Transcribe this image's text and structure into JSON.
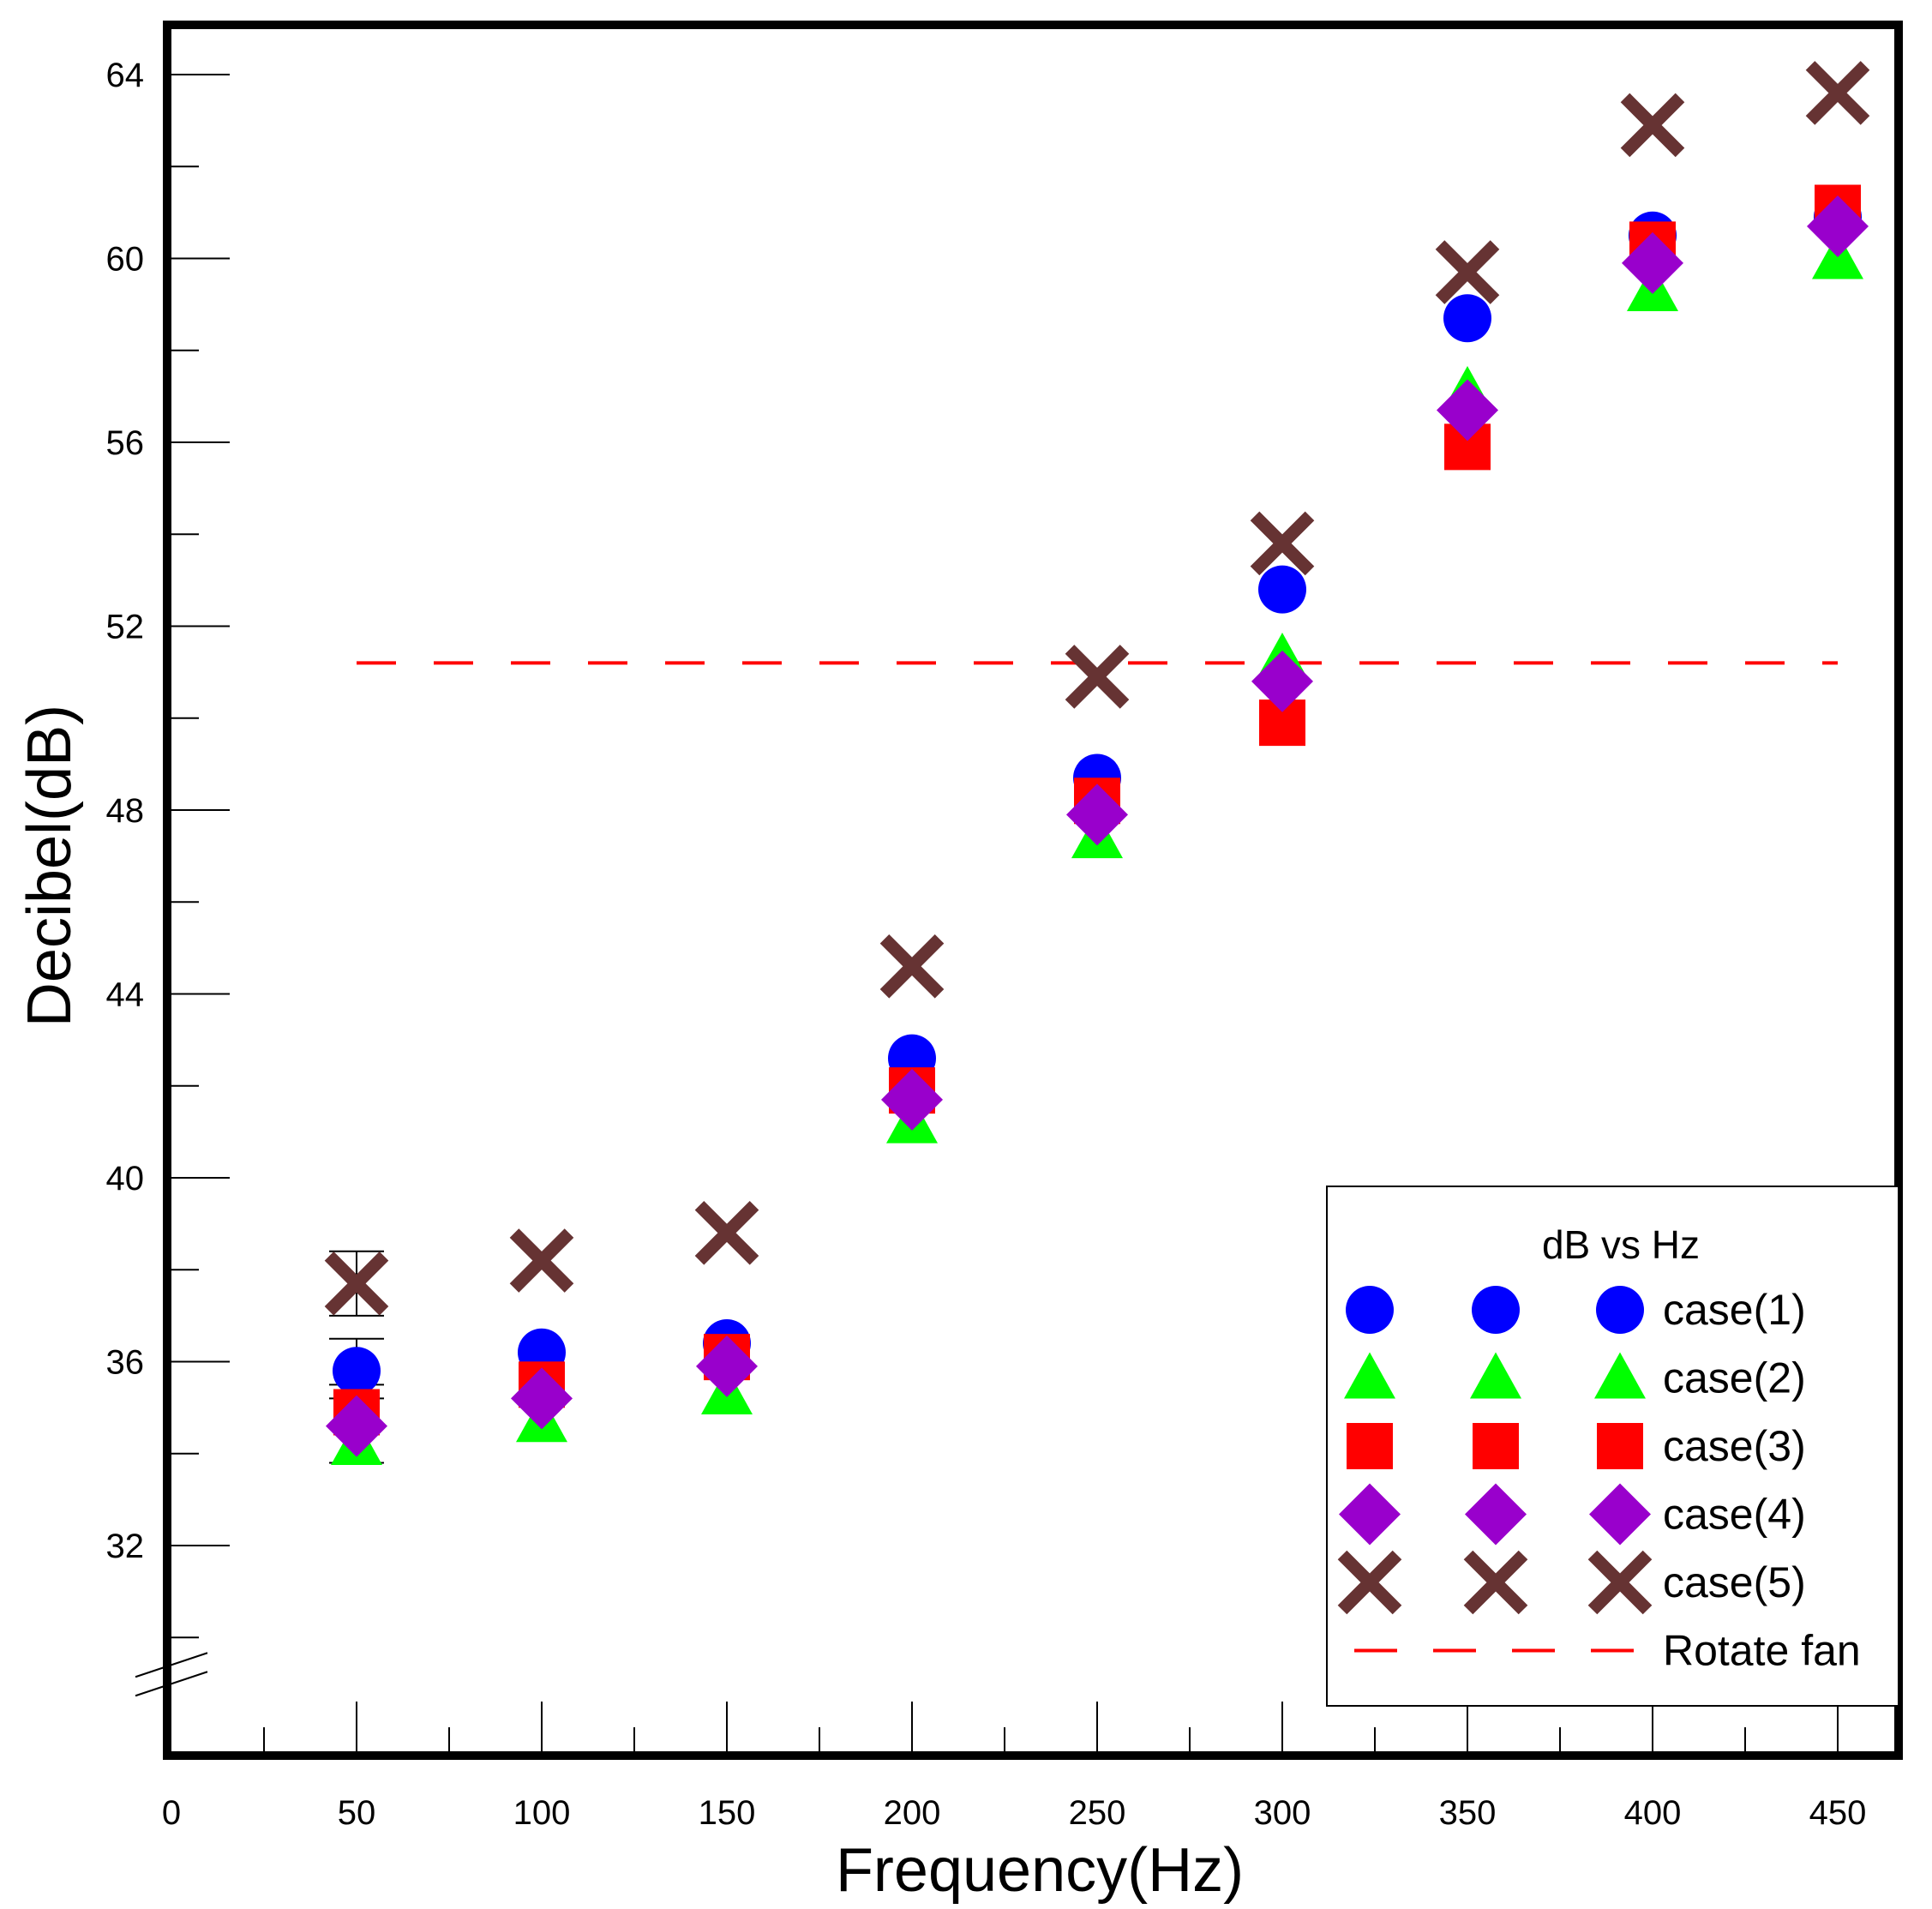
{
  "chart_data": {
    "type": "scatter",
    "title": "",
    "xlabel": "Frequency(Hz)",
    "ylabel": "Decibel(dB)",
    "xlim": [
      0,
      470
    ],
    "ylim": [
      29.5,
      65
    ],
    "xticks": [
      0,
      50,
      100,
      150,
      200,
      250,
      300,
      350,
      400,
      450
    ],
    "yticks": [
      32,
      36,
      40,
      44,
      48,
      52,
      56,
      60,
      64
    ],
    "x_axis_break": true,
    "grid": false,
    "legend": {
      "title": "dB vs Hz",
      "position": "bottom-right"
    },
    "x": [
      50,
      100,
      150,
      200,
      250,
      300,
      350,
      400,
      450
    ],
    "series": [
      {
        "name": "case(1)",
        "marker": "circle",
        "color": "#0000ff",
        "values": [
          35.8,
          36.2,
          36.4,
          42.6,
          48.7,
          52.8,
          58.7,
          60.5,
          60.9
        ]
      },
      {
        "name": "case(2)",
        "marker": "triangle",
        "color": "#00ff00",
        "values": [
          34.2,
          34.7,
          35.3,
          41.2,
          47.4,
          51.3,
          57.1,
          59.3,
          60.0
        ]
      },
      {
        "name": "case(3)",
        "marker": "square",
        "color": "#ff0000",
        "values": [
          34.9,
          35.5,
          36.1,
          41.9,
          48.2,
          49.9,
          55.9,
          60.3,
          61.1
        ]
      },
      {
        "name": "case(4)",
        "marker": "diamond",
        "color": "#9900cc",
        "values": [
          34.6,
          35.2,
          35.9,
          41.7,
          47.9,
          50.8,
          56.7,
          59.9,
          60.7
        ]
      },
      {
        "name": "case(5)",
        "marker": "x",
        "color": "#663333",
        "values": [
          37.7,
          38.2,
          38.8,
          44.6,
          50.9,
          53.8,
          59.7,
          62.9,
          63.6
        ]
      },
      {
        "name": "Rotate fan",
        "marker": "dashed-line",
        "color": "#ff0000",
        "x_range": [
          50,
          450
        ],
        "value": 51.2
      }
    ],
    "error_bars": {
      "x": 50,
      "ranges": [
        [
          37.0,
          38.4
        ],
        [
          35.2,
          36.5
        ],
        [
          33.8,
          35.5
        ]
      ]
    }
  }
}
